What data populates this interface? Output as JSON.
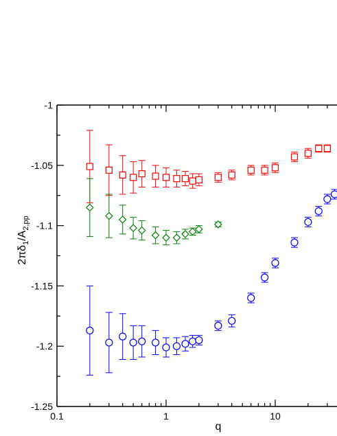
{
  "chart_data": {
    "type": "scatter",
    "title": "",
    "xlabel": "q",
    "ylabel_parts": {
      "main": "2πδ",
      "sub1": "1",
      "slash": "/A",
      "sub2": "2,pp"
    },
    "xscale": "log",
    "xlim": [
      0.1,
      37
    ],
    "ylim": [
      -1.25,
      -1.0
    ],
    "grid": false,
    "x_ticks": [
      {
        "value": 0.1,
        "label": "0.1"
      },
      {
        "value": 1,
        "label": "1"
      },
      {
        "value": 10,
        "label": "10"
      }
    ],
    "y_ticks": [
      {
        "value": -1.0,
        "label": "-1"
      },
      {
        "value": -1.05,
        "label": "-1.05"
      },
      {
        "value": -1.1,
        "label": "-1.1"
      },
      {
        "value": -1.15,
        "label": "-1.15"
      },
      {
        "value": -1.2,
        "label": "-1.2"
      },
      {
        "value": -1.25,
        "label": "-1.25"
      }
    ],
    "series": [
      {
        "marker": "square",
        "color": "#ff0000",
        "points": [
          {
            "x": 0.2,
            "y": -1.051,
            "err": 0.03
          },
          {
            "x": 0.3,
            "y": -1.054,
            "err": 0.021
          },
          {
            "x": 0.4,
            "y": -1.058,
            "err": 0.016
          },
          {
            "x": 0.5,
            "y": -1.06,
            "err": 0.013
          },
          {
            "x": 0.6,
            "y": -1.057,
            "err": 0.011
          },
          {
            "x": 0.8,
            "y": -1.059,
            "err": 0.009
          },
          {
            "x": 1.0,
            "y": -1.06,
            "err": 0.008
          },
          {
            "x": 1.25,
            "y": -1.061,
            "err": 0.007
          },
          {
            "x": 1.5,
            "y": -1.061,
            "err": 0.006
          },
          {
            "x": 1.75,
            "y": -1.063,
            "err": 0.006
          },
          {
            "x": 2.0,
            "y": -1.062,
            "err": 0.005
          },
          {
            "x": 3.0,
            "y": -1.06,
            "err": 0.004
          },
          {
            "x": 4.0,
            "y": -1.058,
            "err": 0.004
          },
          {
            "x": 6.0,
            "y": -1.054,
            "err": 0.004
          },
          {
            "x": 8.0,
            "y": -1.054,
            "err": 0.004
          },
          {
            "x": 10.0,
            "y": -1.052,
            "err": 0.004
          },
          {
            "x": 15.0,
            "y": -1.043,
            "err": 0.004
          },
          {
            "x": 20.0,
            "y": -1.04,
            "err": 0.004
          },
          {
            "x": 25.0,
            "y": -1.036,
            "err": 0.003
          },
          {
            "x": 30.0,
            "y": -1.036,
            "err": 0.003
          }
        ]
      },
      {
        "marker": "diamond",
        "color": "#008000",
        "points": [
          {
            "x": 0.2,
            "y": -1.085,
            "err": 0.024
          },
          {
            "x": 0.3,
            "y": -1.092,
            "err": 0.018
          },
          {
            "x": 0.4,
            "y": -1.095,
            "err": 0.012
          },
          {
            "x": 0.5,
            "y": -1.102,
            "err": 0.009
          },
          {
            "x": 0.6,
            "y": -1.104,
            "err": 0.008
          },
          {
            "x": 0.8,
            "y": -1.108,
            "err": 0.007
          },
          {
            "x": 1.0,
            "y": -1.11,
            "err": 0.006
          },
          {
            "x": 1.25,
            "y": -1.11,
            "err": 0.005
          },
          {
            "x": 1.5,
            "y": -1.107,
            "err": 0.004
          },
          {
            "x": 1.75,
            "y": -1.105,
            "err": 0.003
          },
          {
            "x": 2.0,
            "y": -1.103,
            "err": 0.003
          },
          {
            "x": 3.0,
            "y": -1.099,
            "err": 0.002
          }
        ]
      },
      {
        "marker": "circle",
        "color": "#0000ff",
        "points": [
          {
            "x": 0.2,
            "y": -1.187,
            "err": 0.037
          },
          {
            "x": 0.3,
            "y": -1.197,
            "err": 0.025
          },
          {
            "x": 0.4,
            "y": -1.192,
            "err": 0.019
          },
          {
            "x": 0.5,
            "y": -1.197,
            "err": 0.014
          },
          {
            "x": 0.6,
            "y": -1.196,
            "err": 0.013
          },
          {
            "x": 0.8,
            "y": -1.197,
            "err": 0.01
          },
          {
            "x": 1.0,
            "y": -1.201,
            "err": 0.008
          },
          {
            "x": 1.25,
            "y": -1.2,
            "err": 0.007
          },
          {
            "x": 1.5,
            "y": -1.198,
            "err": 0.006
          },
          {
            "x": 1.75,
            "y": -1.196,
            "err": 0.005
          },
          {
            "x": 2.0,
            "y": -1.195,
            "err": 0.004
          },
          {
            "x": 3.0,
            "y": -1.183,
            "err": 0.004
          },
          {
            "x": 4.0,
            "y": -1.179,
            "err": 0.005
          },
          {
            "x": 6.0,
            "y": -1.16,
            "err": 0.004
          },
          {
            "x": 8.0,
            "y": -1.143,
            "err": 0.004
          },
          {
            "x": 10.0,
            "y": -1.131,
            "err": 0.004
          },
          {
            "x": 15.0,
            "y": -1.114,
            "err": 0.004
          },
          {
            "x": 20.0,
            "y": -1.097,
            "err": 0.004
          },
          {
            "x": 25.0,
            "y": -1.088,
            "err": 0.004
          },
          {
            "x": 30.0,
            "y": -1.078,
            "err": 0.004
          },
          {
            "x": 35.0,
            "y": -1.074,
            "err": 0.004
          }
        ]
      }
    ]
  }
}
